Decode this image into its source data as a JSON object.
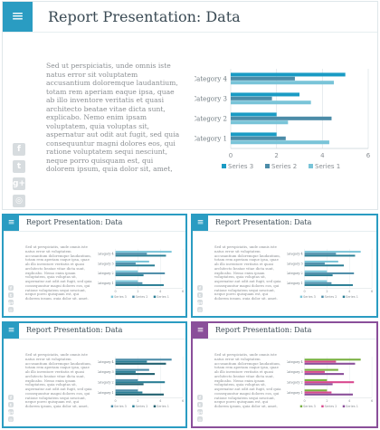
{
  "main": {
    "title": "Report Presentation: Data",
    "body": "Sed ut perspiciatis, unde omnis iste natus error sit voluptatem accusantium doloremque laudantium, totam rem aperiam eaque ipsa, quae ab illo inventore veritatis et quasi architecto beatae vitae dicta sunt, explicabo. Nemo enim ipsam voluptatem, quia voluptas sit, aspernatur aut odit aut fugit, sed quia consequuntur magni dolores eos, qui ratione voluptatem sequi nesciunt, neque porro quisquam est, qui dolorem ipsum, quia dolor sit, amet, consectetur, adipisci velit, sed quia non numquam eius modi tempora incidunt, ut labore et dolore magnam aliquam quaerat voluptatem. Ut enim ad minima veniam, quis nostrum",
    "social_icons": [
      "facebook-icon",
      "twitter-icon",
      "google-plus-icon",
      "instagram-icon"
    ],
    "social_glyphs": [
      "f",
      "t",
      "g+",
      "◎"
    ],
    "menu_icon": "menu-icon",
    "accent": "#2a9cc2"
  },
  "thumbnails": [
    {
      "title": "Report Presentation: Data",
      "accent": "#2a9cc2",
      "palette": [
        "#2a7e95",
        "#4c8ca8",
        "#79c4d8"
      ]
    },
    {
      "title": "Report Presentation: Data",
      "accent": "#2a9cc2",
      "palette": [
        "#2a7e95",
        "#4c8ca8",
        "#79c4d8"
      ]
    },
    {
      "title": "Report Presentation: Data",
      "accent": "#2a9cc2",
      "palette": [
        "#1f5f6e",
        "#2a7e95",
        "#4c8ca8"
      ]
    },
    {
      "title": "Report Presentation: Data",
      "accent": "#8a4f9a",
      "palette": [
        "#8a4f9a",
        "#d8488e",
        "#79b042"
      ]
    }
  ],
  "chart_data": {
    "type": "bar",
    "orientation": "horizontal",
    "categories": [
      "Category 1",
      "Category 2",
      "Category 3",
      "Category 4"
    ],
    "series": [
      {
        "name": "Series 1",
        "values": [
          4.3,
          2.5,
          3.5,
          4.5
        ],
        "color": "#79c4d8"
      },
      {
        "name": "Series 2",
        "values": [
          2.4,
          4.4,
          1.8,
          2.8
        ],
        "color": "#4c8ca8"
      },
      {
        "name": "Series 3",
        "values": [
          2.0,
          2.0,
          3.0,
          5.0
        ],
        "color": "#1a9bc4"
      }
    ],
    "xlim": [
      0,
      6
    ],
    "xticks": [
      "0",
      "2",
      "4",
      "6"
    ],
    "legend": "bottom",
    "grid": true
  }
}
